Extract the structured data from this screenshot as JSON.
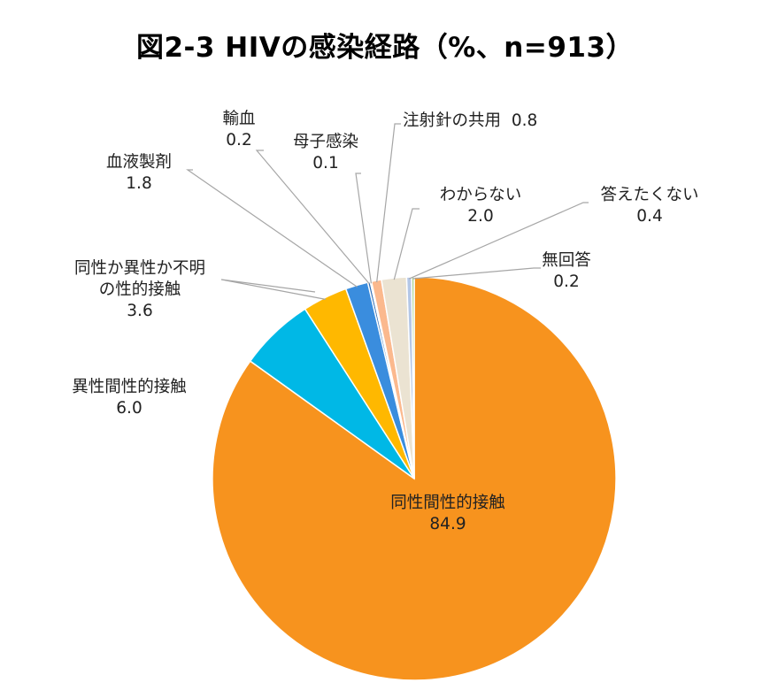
{
  "title": "図2-3 HIVの感染経路（%、n=913）",
  "chart_data": {
    "type": "pie",
    "start": "12 o'clock",
    "direction": "clockwise",
    "unit": "%",
    "n": 913,
    "slices": [
      {
        "name": "同性間性的接触",
        "value": 84.9,
        "value_label": "84.9",
        "color": "#F7931E"
      },
      {
        "name": "異性間性的接触",
        "value": 6.0,
        "value_label": "6.0",
        "color": "#00B8E6"
      },
      {
        "name": "同性か異性か不明の性的接触",
        "value": 3.6,
        "value_label": "3.6",
        "label_lines": [
          "同性か異性か不明",
          "の性的接触"
        ],
        "color": "#FFB800"
      },
      {
        "name": "血液製剤",
        "value": 1.8,
        "value_label": "1.8",
        "color": "#3A8DDE"
      },
      {
        "name": "輸血",
        "value": 0.2,
        "value_label": "0.2",
        "color": "#2E6DB4"
      },
      {
        "name": "母子感染",
        "value": 0.1,
        "value_label": "0.1",
        "color": "#70AD47"
      },
      {
        "name": "注射針の共用",
        "value": 0.8,
        "value_label": "0.8",
        "color": "#FBB98E"
      },
      {
        "name": "わからない",
        "value": 2.0,
        "value_label": "2.0",
        "color": "#EBE3D2"
      },
      {
        "name": "答えたくない",
        "value": 0.4,
        "value_label": "0.4",
        "color": "#B4C7E7"
      },
      {
        "name": "無回答",
        "value": 0.2,
        "value_label": "0.2",
        "color": "#A9D18E"
      }
    ]
  }
}
